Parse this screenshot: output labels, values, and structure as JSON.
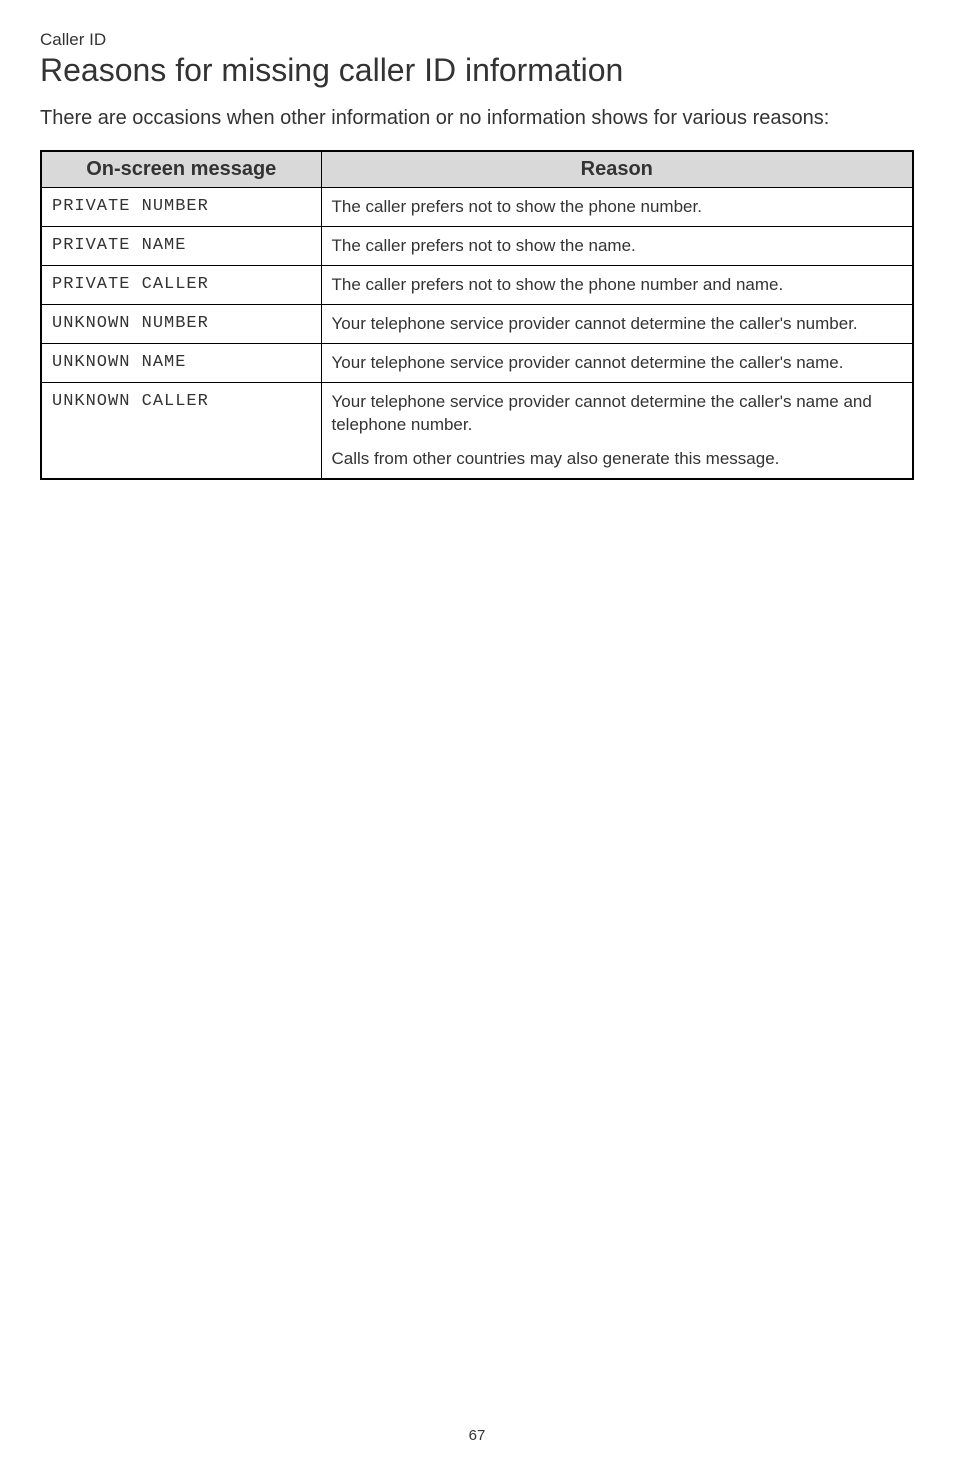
{
  "section_label": "Caller ID",
  "page_title": "Reasons for missing caller ID information",
  "intro": "There are occasions when other information or no information shows for various reasons:",
  "table": {
    "headers": {
      "message": "On-screen message",
      "reason": "Reason"
    },
    "rows": [
      {
        "message": "PRIVATE NUMBER",
        "reason": [
          "The caller prefers not to show the phone number."
        ]
      },
      {
        "message": "PRIVATE NAME",
        "reason": [
          "The caller prefers not to show the name."
        ]
      },
      {
        "message": "PRIVATE CALLER",
        "reason": [
          "The caller prefers not to show the phone number and name."
        ]
      },
      {
        "message": "UNKNOWN NUMBER",
        "reason": [
          "Your telephone service provider cannot determine the caller's number."
        ]
      },
      {
        "message": "UNKNOWN NAME",
        "reason": [
          "Your telephone service provider cannot determine the caller's name."
        ]
      },
      {
        "message": "UNKNOWN CALLER",
        "reason": [
          "Your telephone service provider cannot determine the caller's name and telephone number.",
          "Calls from other countries may also generate this message."
        ]
      }
    ]
  },
  "page_number": "67"
}
